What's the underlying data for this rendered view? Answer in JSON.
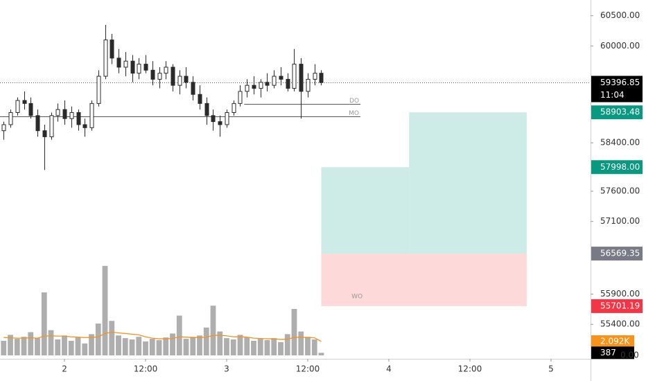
{
  "chart_data": {
    "type": "candlestick",
    "xlim": [
      14.46,
      101.85
    ],
    "xticks": [
      {
        "value": 24,
        "label": "2"
      },
      {
        "value": 36,
        "label": "12:00"
      },
      {
        "value": 48,
        "label": "3"
      },
      {
        "value": 60,
        "label": "12:00"
      },
      {
        "value": 72,
        "label": "4"
      },
      {
        "value": 84,
        "label": "12:00"
      },
      {
        "value": 96,
        "label": "5"
      }
    ],
    "ylim": [
      54830,
      60760
    ],
    "yticks": [
      {
        "value": 60500,
        "label": "60500.00"
      },
      {
        "value": 60000,
        "label": "60000.00"
      },
      {
        "value": 58400,
        "label": "58400.00"
      },
      {
        "value": 57600,
        "label": "57600.00"
      },
      {
        "value": 57100,
        "label": "57100.00"
      },
      {
        "value": 55900,
        "label": "55900.00"
      },
      {
        "value": 55400,
        "label": "55400.00"
      }
    ],
    "candle_color": "#2a2a2a",
    "x": [
      15,
      16,
      17,
      18,
      19,
      20,
      21,
      22,
      23,
      24,
      25,
      26,
      27,
      28,
      29,
      30,
      31,
      32,
      33,
      34,
      35,
      36,
      37,
      38,
      39,
      40,
      41,
      42,
      43,
      44,
      45,
      46,
      47,
      48,
      49,
      50,
      51,
      52,
      53,
      54,
      55,
      56,
      57,
      58,
      59,
      60,
      61,
      62
    ],
    "ohlc": [
      [
        58600,
        58750,
        58450,
        58700
      ],
      [
        58700,
        58950,
        58650,
        58900
      ],
      [
        58900,
        59150,
        58850,
        59100
      ],
      [
        59100,
        59250,
        58950,
        59050
      ],
      [
        59050,
        59150,
        58800,
        58850
      ],
      [
        58850,
        58950,
        58500,
        58600
      ],
      [
        58600,
        58700,
        57950,
        58500
      ],
      [
        58500,
        58900,
        58450,
        58850
      ],
      [
        58850,
        59050,
        58750,
        58950
      ],
      [
        58950,
        59100,
        58700,
        58800
      ],
      [
        58800,
        59000,
        58650,
        58900
      ],
      [
        58900,
        58950,
        58600,
        58700
      ],
      [
        58700,
        58800,
        58500,
        58650
      ],
      [
        58650,
        59100,
        58600,
        59050
      ],
      [
        59050,
        59600,
        59000,
        59500
      ],
      [
        59500,
        60350,
        59450,
        60100
      ],
      [
        60100,
        60200,
        59700,
        59800
      ],
      [
        59800,
        59950,
        59550,
        59650
      ],
      [
        59650,
        59900,
        59500,
        59750
      ],
      [
        59750,
        59850,
        59400,
        59550
      ],
      [
        59550,
        59800,
        59450,
        59700
      ],
      [
        59700,
        59850,
        59550,
        59600
      ],
      [
        59600,
        59750,
        59350,
        59450
      ],
      [
        59450,
        59650,
        59300,
        59550
      ],
      [
        59550,
        59750,
        59450,
        59650
      ],
      [
        59650,
        59700,
        59250,
        59350
      ],
      [
        59350,
        59600,
        59200,
        59500
      ],
      [
        59500,
        59650,
        59300,
        59400
      ],
      [
        59400,
        59500,
        59100,
        59200
      ],
      [
        59200,
        59350,
        58950,
        59050
      ],
      [
        59050,
        59150,
        58700,
        58850
      ],
      [
        58850,
        58950,
        58600,
        58750
      ],
      [
        58750,
        58850,
        58500,
        58700
      ],
      [
        58700,
        58950,
        58650,
        58900
      ],
      [
        58900,
        59100,
        58850,
        59050
      ],
      [
        59050,
        59350,
        59000,
        59250
      ],
      [
        59250,
        59450,
        59150,
        59350
      ],
      [
        59350,
        59500,
        59200,
        59300
      ],
      [
        59300,
        59450,
        59150,
        59400
      ],
      [
        59400,
        59550,
        59250,
        59350
      ],
      [
        59350,
        59600,
        59300,
        59500
      ],
      [
        59500,
        59650,
        59350,
        59450
      ],
      [
        59450,
        59550,
        59250,
        59300
      ],
      [
        59300,
        59950,
        59250,
        59700
      ],
      [
        59700,
        59800,
        58800,
        59250
      ],
      [
        59250,
        59550,
        59150,
        59450
      ],
      [
        59450,
        59700,
        59350,
        59550
      ],
      [
        59550,
        59600,
        59350,
        59396.85
      ]
    ],
    "volume": [
      2200,
      3100,
      2500,
      2800,
      3500,
      2600,
      9500,
      3800,
      2400,
      3000,
      2200,
      2700,
      1800,
      3200,
      4800,
      13500,
      5200,
      3000,
      2600,
      2400,
      2800,
      2100,
      2500,
      2300,
      2700,
      3300,
      6000,
      2500,
      2800,
      3000,
      4200,
      7500,
      3600,
      2600,
      2400,
      3100,
      2700,
      2200,
      2500,
      2300,
      2600,
      2000,
      3200,
      7000,
      3600,
      2800,
      2400,
      387
    ],
    "volume_ma": [
      2700,
      2650,
      2600,
      2600,
      2650,
      2600,
      2900,
      2950,
      2900,
      2900,
      2800,
      2750,
      2700,
      2700,
      2800,
      3300,
      3500,
      3400,
      3300,
      3200,
      3100,
      2800,
      2600,
      2500,
      2500,
      2550,
      2800,
      2750,
      2700,
      2700,
      2750,
      3000,
      3050,
      2950,
      2800,
      2800,
      2750,
      2600,
      2550,
      2500,
      2500,
      2400,
      2450,
      2700,
      2750,
      2700,
      2650,
      2092
    ],
    "volume_color": "#9a9a9a",
    "volume_ma_color": "#f7931a",
    "volume_lim": [
      0,
      13900
    ],
    "volume_labels": [
      {
        "value": 2092,
        "label": "2.092K",
        "color": "#f7931a"
      },
      {
        "value": 387,
        "label": "387",
        "color": "#000000"
      },
      {
        "value": 0,
        "label": "0.00",
        "color": null
      }
    ],
    "current_price": {
      "value": 59396.85,
      "countdown": "11:04",
      "color": "#000000"
    },
    "price_labels": [
      {
        "value": 58903.48,
        "color": "#089981"
      },
      {
        "value": 57998,
        "label": "57998.00",
        "color": "#089981"
      },
      {
        "value": 56569.35,
        "color": "#787b86"
      },
      {
        "value": 55701.19,
        "color": "#f23645"
      }
    ],
    "boxes": [
      {
        "x": [
          62,
          75
        ],
        "y": [
          56569.35,
          57998
        ],
        "color": "#cdebe7"
      },
      {
        "x": [
          75,
          92.4
        ],
        "y": [
          56569.35,
          58903.48
        ],
        "color": "#cdebe7"
      },
      {
        "x": [
          62,
          92.4
        ],
        "y": [
          55701.19,
          56569.35
        ],
        "color": "#fdd9d9"
      }
    ],
    "levels": [
      {
        "label": "DO",
        "value": 59042,
        "x": [
          50.6,
          67.8
        ]
      },
      {
        "label": "MO",
        "value": 58836,
        "x": [
          14.46,
          67.8
        ]
      }
    ],
    "annotations": [
      {
        "text": "WO",
        "x": 67.3,
        "y": 55860
      }
    ]
  }
}
